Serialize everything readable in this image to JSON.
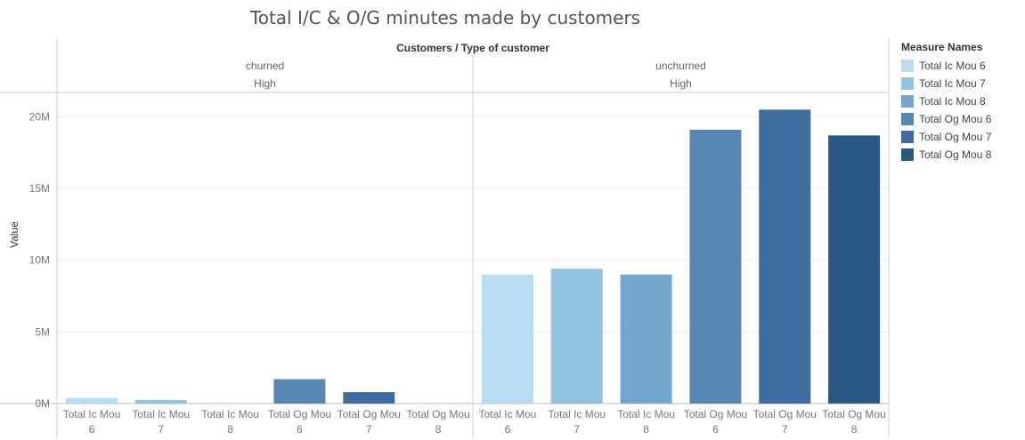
{
  "chart_data": {
    "type": "bar",
    "title": "Total I/C & O/G minutes made by customers",
    "column_header": "Customers / Type of customer",
    "ylabel": "Value",
    "ylim": [
      0,
      21700000
    ],
    "yticks": [
      {
        "value": 0,
        "label": "0M"
      },
      {
        "value": 5000000,
        "label": "5M"
      },
      {
        "value": 10000000,
        "label": "10M"
      },
      {
        "value": 15000000,
        "label": "15M"
      },
      {
        "value": 20000000,
        "label": "20M"
      }
    ],
    "categories": [
      "Total Ic Mou 6",
      "Total Ic Mou 7",
      "Total Ic Mou 8",
      "Total Og Mou 6",
      "Total Og Mou 7",
      "Total Og Mou 8"
    ],
    "category_label_lines": [
      [
        "Total Ic Mou",
        "6"
      ],
      [
        "Total Ic Mou",
        "7"
      ],
      [
        "Total Ic Mou",
        "8"
      ],
      [
        "Total Og Mou",
        "6"
      ],
      [
        "Total Og Mou",
        "7"
      ],
      [
        "Total Og Mou",
        "8"
      ]
    ],
    "colors": [
      "#b9ddf0",
      "#93c2e0",
      "#73a7cc",
      "#5788b4",
      "#3f6d9f",
      "#2b5783"
    ],
    "grid": true,
    "legend_position": "right",
    "legend": {
      "title": "Measure Names",
      "items": [
        "Total Ic Mou 6",
        "Total Ic Mou 7",
        "Total Ic Mou 8",
        "Total Og Mou 6",
        "Total Og Mou 7",
        "Total Og Mou 8"
      ]
    },
    "panels": [
      {
        "group": "churned",
        "subgroup": "High",
        "values": [
          400000,
          250000,
          0,
          1700000,
          800000,
          0
        ]
      },
      {
        "group": "unchurned",
        "subgroup": "High",
        "values": [
          9000000,
          9400000,
          9000000,
          19100000,
          20500000,
          18700000
        ]
      }
    ]
  }
}
